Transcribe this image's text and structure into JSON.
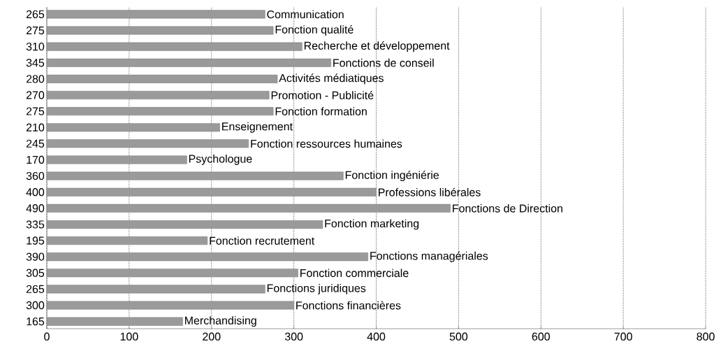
{
  "chart_data": {
    "type": "bar",
    "orientation": "horizontal",
    "categories": [
      "Communication",
      "Fonction qualité",
      "Recherche et développement",
      "Fonctions de conseil",
      "Activités médiatiques",
      "Promotion - Publicité",
      "Fonction formation",
      "Enseignement",
      "Fonction ressources humaines",
      "Psychologue",
      "Fonction ingéniérie",
      "Professions libérales",
      "Fonctions de Direction",
      "Fonction marketing",
      "Fonction recrutement",
      "Fonctions managériales",
      "Fonction commerciale",
      "Fonctions juridiques",
      "Fonctions financières",
      "Merchandising"
    ],
    "values": [
      265,
      275,
      310,
      345,
      280,
      270,
      275,
      210,
      245,
      170,
      360,
      400,
      490,
      335,
      195,
      390,
      305,
      265,
      300,
      165
    ],
    "color": "#9a9a9a",
    "data_labels": true,
    "xlim": [
      0,
      800
    ],
    "xticks": [
      0,
      100,
      200,
      300,
      400,
      500,
      600,
      700,
      800
    ],
    "grid": "x"
  }
}
